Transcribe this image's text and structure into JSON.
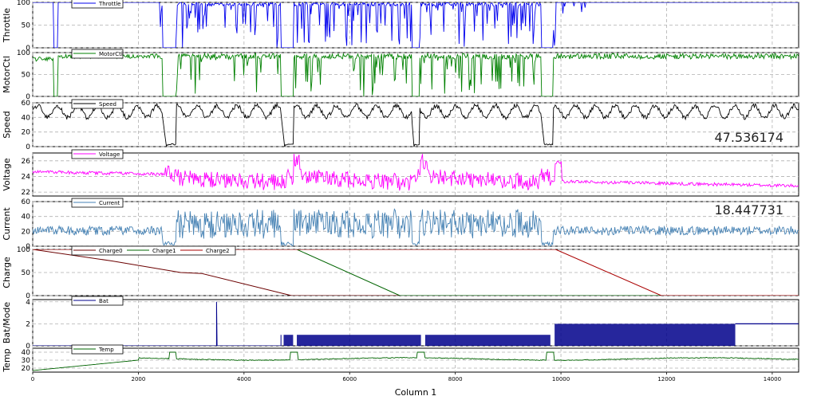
{
  "chart_data": {
    "type": "line",
    "xlabel": "Column 1",
    "xlim": [
      0,
      14500
    ],
    "xticks": [
      0,
      2000,
      4000,
      6000,
      8000,
      10000,
      12000,
      14000
    ],
    "grid": true,
    "panels": [
      {
        "ylabel": "Throttle",
        "ylim": [
          0,
          100
        ],
        "yticks": [
          0,
          50,
          100
        ],
        "legend": [
          "Throttle"
        ],
        "series": [
          {
            "name": "Throttle",
            "color": "#0000ee",
            "kind": "throttle"
          }
        ]
      },
      {
        "ylabel": "MotorCtl",
        "ylim": [
          0,
          100
        ],
        "yticks": [
          0,
          50,
          100
        ],
        "legend": [
          "MotorCtl"
        ],
        "series": [
          {
            "name": "MotorCtl",
            "color": "#008000",
            "kind": "motor"
          }
        ]
      },
      {
        "ylabel": "Speed",
        "ylim": [
          0,
          60
        ],
        "yticks": [
          0,
          20,
          40,
          60
        ],
        "legend": [
          "Speed"
        ],
        "readout": "47.536174",
        "series": [
          {
            "name": "Speed",
            "color": "#000000",
            "kind": "speed"
          }
        ]
      },
      {
        "ylabel": "Voltage",
        "ylim": [
          21.5,
          27
        ],
        "yticks": [
          22,
          24,
          26
        ],
        "legend": [
          "Voltage"
        ],
        "series": [
          {
            "name": "Voltage",
            "color": "#ff00ff",
            "kind": "voltage"
          }
        ]
      },
      {
        "ylabel": "Current",
        "ylim": [
          0,
          60
        ],
        "yticks": [
          0,
          20,
          40,
          60
        ],
        "legend": [
          "Current"
        ],
        "readout": "18.447731",
        "series": [
          {
            "name": "Current",
            "color": "#4682b4",
            "kind": "current"
          }
        ]
      },
      {
        "ylabel": "Charge",
        "ylim": [
          0,
          100
        ],
        "yticks": [
          0,
          50,
          100
        ],
        "legend": [
          "Charge0",
          "Charge1",
          "Charge2"
        ],
        "series": [
          {
            "name": "Charge0",
            "color": "#6b0000",
            "kind": "poly",
            "x": [
              0,
              1500,
              2800,
              3200,
              4900,
              14500
            ],
            "y": [
              100,
              75,
              50,
              48,
              0,
              0
            ]
          },
          {
            "name": "Charge1",
            "color": "#006400",
            "kind": "poly",
            "x": [
              0,
              5000,
              6950,
              14500
            ],
            "y": [
              100,
              100,
              0,
              0
            ]
          },
          {
            "name": "Charge2",
            "color": "#aa0000",
            "kind": "poly",
            "x": [
              0,
              9900,
              11900,
              14500
            ],
            "y": [
              100,
              100,
              0,
              0
            ]
          }
        ]
      },
      {
        "ylabel": "Bat/Mode",
        "ylim": [
          0,
          4.2
        ],
        "yticks": [
          0,
          2,
          4
        ],
        "legend": [
          "Bat"
        ],
        "series": [
          {
            "name": "Bat",
            "color": "#00008b",
            "kind": "bat"
          }
        ]
      },
      {
        "ylabel": "Temp",
        "ylim": [
          15,
          45
        ],
        "yticks": [
          20,
          30,
          40
        ],
        "legend": [
          "Temp"
        ],
        "series": [
          {
            "name": "Temp",
            "color": "#006400",
            "kind": "temp"
          }
        ]
      }
    ]
  }
}
